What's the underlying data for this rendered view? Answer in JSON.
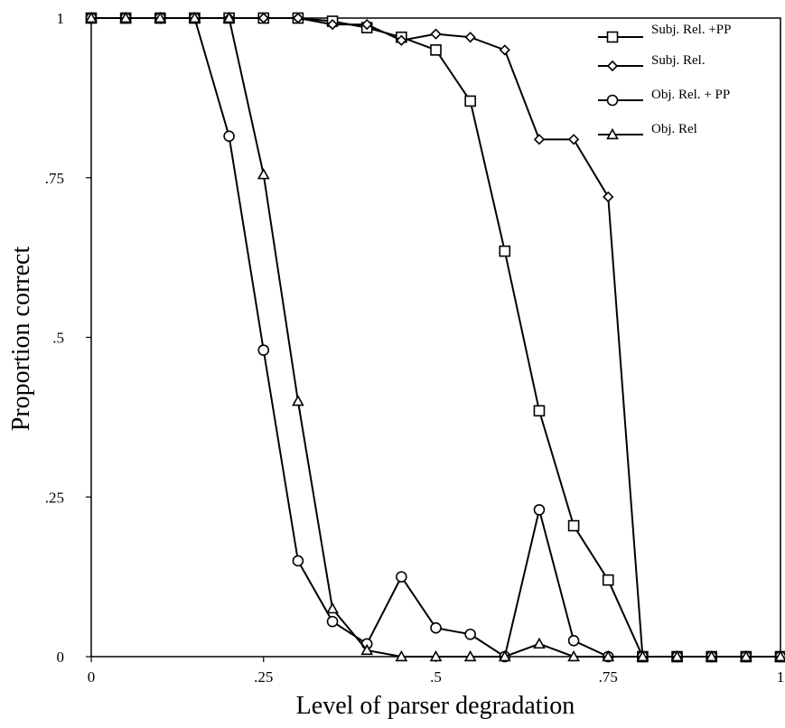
{
  "chart_data": {
    "type": "line",
    "title": "",
    "xlabel": "Level of parser degradation",
    "ylabel": "Proportion correct",
    "xlim": [
      0,
      1
    ],
    "ylim": [
      0,
      1
    ],
    "grid": false,
    "legend_position": "top-right",
    "x_ticks": [
      {
        "value": 0,
        "label": "0"
      },
      {
        "value": 0.25,
        "label": ".25"
      },
      {
        "value": 0.5,
        "label": ".5"
      },
      {
        "value": 0.75,
        "label": ".75"
      },
      {
        "value": 1,
        "label": "1"
      }
    ],
    "y_ticks": [
      {
        "value": 0,
        "label": "0"
      },
      {
        "value": 0.25,
        "label": ".25"
      },
      {
        "value": 0.5,
        "label": ".5"
      },
      {
        "value": 0.75,
        "label": ".75"
      },
      {
        "value": 1,
        "label": "1"
      }
    ],
    "x": [
      0,
      0.05,
      0.1,
      0.15,
      0.2,
      0.25,
      0.3,
      0.35,
      0.4,
      0.45,
      0.5,
      0.55,
      0.6,
      0.65,
      0.7,
      0.75,
      0.8,
      0.85,
      0.9,
      0.95,
      1.0
    ],
    "series": [
      {
        "name": "Subj. Rel. +PP",
        "marker": "square",
        "values": [
          1,
          1,
          1,
          1,
          1,
          1,
          1,
          0.995,
          0.985,
          0.97,
          0.95,
          0.87,
          0.635,
          0.385,
          0.205,
          0.12,
          0,
          0,
          0,
          0,
          0
        ]
      },
      {
        "name": "Subj. Rel.",
        "marker": "diamond",
        "values": [
          1,
          1,
          1,
          1,
          1,
          1,
          1,
          0.99,
          0.99,
          0.965,
          0.975,
          0.97,
          0.95,
          0.81,
          0.81,
          0.72,
          0,
          0,
          0,
          0,
          0
        ]
      },
      {
        "name": "Obj. Rel. + PP",
        "marker": "circle",
        "values": [
          1,
          1,
          1,
          1,
          0.815,
          0.48,
          0.15,
          0.055,
          0.02,
          0.125,
          0.045,
          0.035,
          0,
          0.23,
          0.025,
          0,
          0,
          0,
          0,
          0,
          0
        ]
      },
      {
        "name": "Obj. Rel",
        "marker": "triangle",
        "values": [
          1,
          1,
          1,
          1,
          1,
          0.755,
          0.4,
          0.075,
          0.01,
          0,
          0,
          0,
          0,
          0.02,
          0,
          0,
          0,
          0,
          0,
          0,
          0
        ]
      }
    ]
  }
}
